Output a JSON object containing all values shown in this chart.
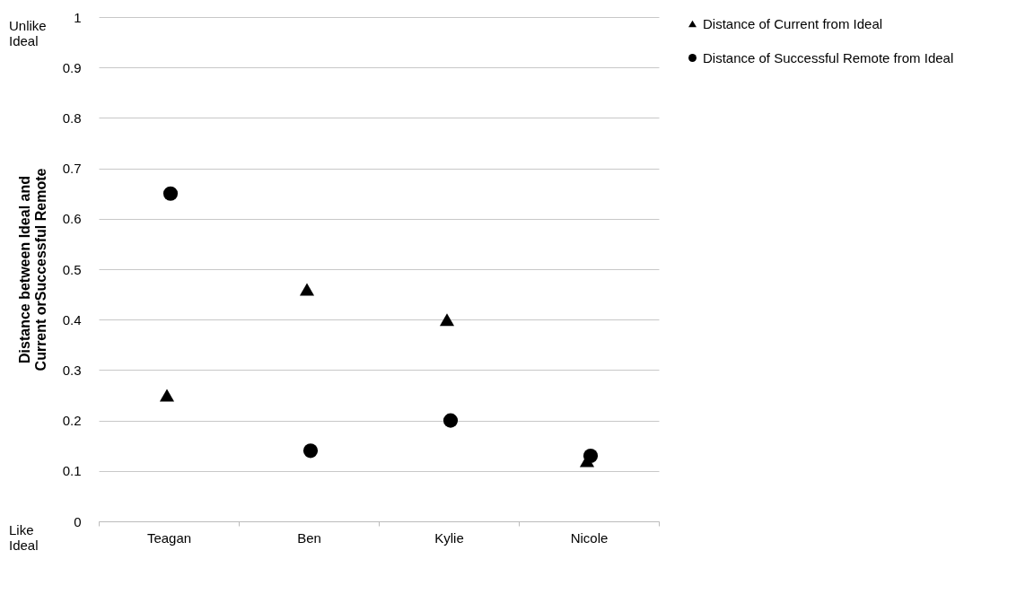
{
  "chart_data": {
    "type": "scatter",
    "categories": [
      "Teagan",
      "Ben",
      "Kylie",
      "Nicole"
    ],
    "series": [
      {
        "name": "Distance of Current from Ideal",
        "color": "#000000",
        "marker": "triangle",
        "values": [
          0.25,
          0.46,
          0.4,
          0.12
        ]
      },
      {
        "name": "Distance of Successful Remote from Ideal",
        "color": "#000000",
        "marker": "circle",
        "values": [
          0.65,
          0.14,
          0.2,
          0.13
        ]
      }
    ],
    "ylabel": "Distance between Ideal and Current orSuccessful Remote",
    "ylim": [
      0,
      1
    ],
    "yticks": [
      0,
      0.1,
      0.2,
      0.3,
      0.4,
      0.5,
      0.6,
      0.7,
      0.8,
      0.9,
      1
    ],
    "grid": "y",
    "legend": "right",
    "annotations": [
      "Unlike Ideal",
      "Like Ideal"
    ]
  }
}
